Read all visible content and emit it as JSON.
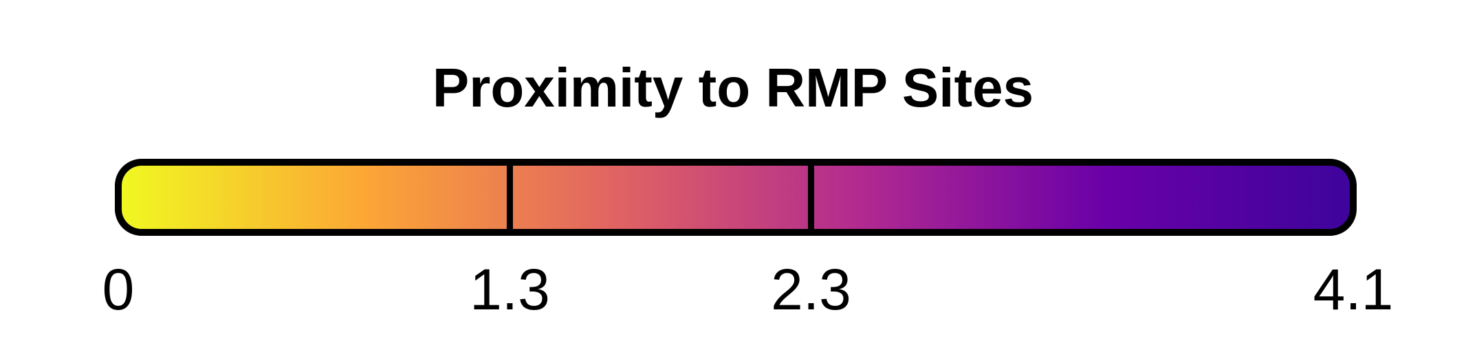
{
  "chart_data": {
    "type": "legend",
    "title": "Proximity to RMP Sites",
    "domain": [
      0,
      4.1
    ],
    "breaks": [
      1.3,
      2.3
    ],
    "tick_values": [
      0,
      1.3,
      2.3,
      4.1
    ],
    "tick_labels": [
      "0",
      "1.3",
      "2.3",
      "4.1"
    ],
    "colormap": "plasma",
    "color_stops": [
      "#f0f921",
      "#fca636",
      "#e16462",
      "#b12a90",
      "#6a00a8",
      "#3d049b"
    ],
    "outline_color": "#000000"
  }
}
